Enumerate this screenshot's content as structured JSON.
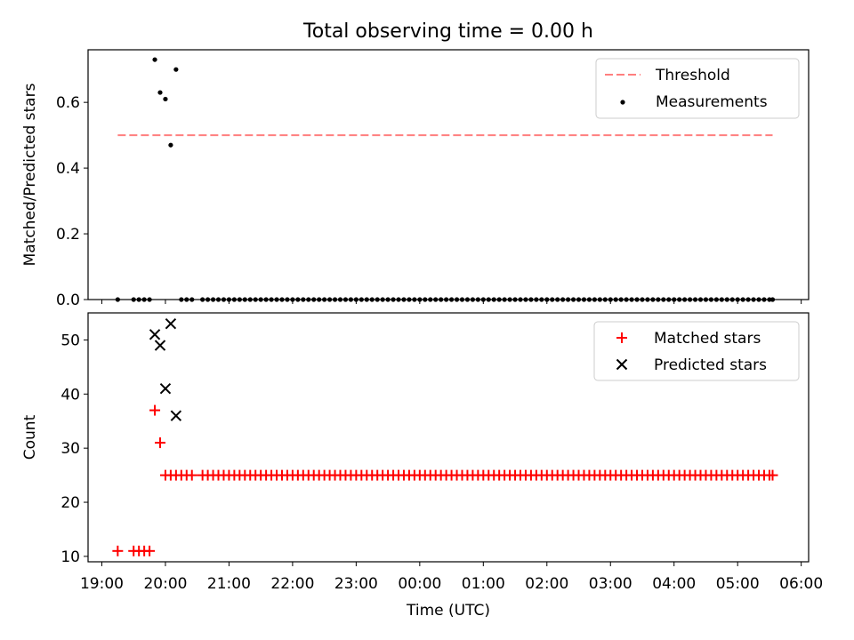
{
  "title": "Total observing time = 0.00 h",
  "chart_data": [
    {
      "type": "scatter",
      "ylabel": "Matched/Predicted stars",
      "ylim": [
        0,
        0.76
      ],
      "yticks": [
        0.0,
        0.2,
        0.4,
        0.6
      ],
      "ytick_labels": [
        "0.0",
        "0.2",
        "0.4",
        "0.6"
      ],
      "legend_placement": "top-right",
      "threshold": {
        "name": "Threshold",
        "value": 0.5,
        "color": "#ff7f7f"
      },
      "series": [
        {
          "name": "Measurements",
          "color": "#000000",
          "x": [
            "19:15",
            "19:30",
            "19:35",
            "19:40",
            "19:45",
            "19:50",
            "19:55",
            "20:00",
            "20:05",
            "20:10",
            "20:15",
            "20:20",
            "20:25",
            "20:35",
            "20:40",
            "20:45",
            "20:50",
            "20:55",
            "21:00",
            "21:05",
            "21:10",
            "21:15",
            "21:20",
            "21:25",
            "21:30",
            "21:35",
            "21:40",
            "21:45",
            "21:50",
            "21:55",
            "22:00",
            "22:05",
            "22:10",
            "22:15",
            "22:20",
            "22:25",
            "22:30",
            "22:35",
            "22:40",
            "22:45",
            "22:50",
            "22:55",
            "23:00",
            "23:05",
            "23:10",
            "23:15",
            "23:20",
            "23:25",
            "23:30",
            "23:35",
            "23:40",
            "23:45",
            "23:50",
            "23:55",
            "00:00",
            "00:05",
            "00:10",
            "00:15",
            "00:20",
            "00:25",
            "00:30",
            "00:35",
            "00:40",
            "00:45",
            "00:50",
            "00:55",
            "01:00",
            "01:05",
            "01:10",
            "01:15",
            "01:20",
            "01:25",
            "01:30",
            "01:35",
            "01:40",
            "01:45",
            "01:50",
            "01:55",
            "02:00",
            "02:05",
            "02:10",
            "02:15",
            "02:20",
            "02:25",
            "02:30",
            "02:35",
            "02:40",
            "02:45",
            "02:50",
            "02:55",
            "03:00",
            "03:05",
            "03:10",
            "03:15",
            "03:20",
            "03:25",
            "03:30",
            "03:35",
            "03:40",
            "03:45",
            "03:50",
            "03:55",
            "04:00",
            "04:05",
            "04:10",
            "04:15",
            "04:20",
            "04:25",
            "04:30",
            "04:35",
            "04:40",
            "04:45",
            "04:50",
            "04:55",
            "05:00",
            "05:05",
            "05:10",
            "05:15",
            "05:20",
            "05:25",
            "05:30",
            "05:33"
          ],
          "y": [
            0,
            0,
            0,
            0,
            0,
            0.73,
            0.63,
            0.61,
            0.47,
            0.7,
            0,
            0,
            0,
            0,
            0,
            0,
            0,
            0,
            0,
            0,
            0,
            0,
            0,
            0,
            0,
            0,
            0,
            0,
            0,
            0,
            0,
            0,
            0,
            0,
            0,
            0,
            0,
            0,
            0,
            0,
            0,
            0,
            0,
            0,
            0,
            0,
            0,
            0,
            0,
            0,
            0,
            0,
            0,
            0,
            0,
            0,
            0,
            0,
            0,
            0,
            0,
            0,
            0,
            0,
            0,
            0,
            0,
            0,
            0,
            0,
            0,
            0,
            0,
            0,
            0,
            0,
            0,
            0,
            0,
            0,
            0,
            0,
            0,
            0,
            0,
            0,
            0,
            0,
            0,
            0,
            0,
            0,
            0,
            0,
            0,
            0,
            0,
            0,
            0,
            0,
            0,
            0,
            0,
            0,
            0,
            0,
            0,
            0,
            0,
            0,
            0,
            0,
            0,
            0,
            0,
            0,
            0,
            0,
            0,
            0,
            0,
            0
          ]
        }
      ]
    },
    {
      "type": "scatter",
      "xlabel": "Time (UTC)",
      "ylabel": "Count",
      "ylim": [
        9,
        55
      ],
      "yticks": [
        10,
        20,
        30,
        40,
        50
      ],
      "ytick_labels": [
        "10",
        "20",
        "30",
        "40",
        "50"
      ],
      "xtick_labels": [
        "19:00",
        "20:00",
        "21:00",
        "22:00",
        "23:00",
        "00:00",
        "01:00",
        "02:00",
        "03:00",
        "04:00",
        "05:00",
        "06:00"
      ],
      "legend_placement": "top-right",
      "series": [
        {
          "name": "Matched stars",
          "marker": "plus",
          "color": "#ff0000",
          "x": [
            "19:15",
            "19:30",
            "19:35",
            "19:40",
            "19:45",
            "19:50",
            "19:55",
            "20:00",
            "20:05",
            "20:10",
            "20:15",
            "20:20",
            "20:25",
            "20:35",
            "20:40",
            "20:45",
            "20:50",
            "20:55",
            "21:00",
            "21:05",
            "21:10",
            "21:15",
            "21:20",
            "21:25",
            "21:30",
            "21:35",
            "21:40",
            "21:45",
            "21:50",
            "21:55",
            "22:00",
            "22:05",
            "22:10",
            "22:15",
            "22:20",
            "22:25",
            "22:30",
            "22:35",
            "22:40",
            "22:45",
            "22:50",
            "22:55",
            "23:00",
            "23:05",
            "23:10",
            "23:15",
            "23:20",
            "23:25",
            "23:30",
            "23:35",
            "23:40",
            "23:45",
            "23:50",
            "23:55",
            "00:00",
            "00:05",
            "00:10",
            "00:15",
            "00:20",
            "00:25",
            "00:30",
            "00:35",
            "00:40",
            "00:45",
            "00:50",
            "00:55",
            "01:00",
            "01:05",
            "01:10",
            "01:15",
            "01:20",
            "01:25",
            "01:30",
            "01:35",
            "01:40",
            "01:45",
            "01:50",
            "01:55",
            "02:00",
            "02:05",
            "02:10",
            "02:15",
            "02:20",
            "02:25",
            "02:30",
            "02:35",
            "02:40",
            "02:45",
            "02:50",
            "02:55",
            "03:00",
            "03:05",
            "03:10",
            "03:15",
            "03:20",
            "03:25",
            "03:30",
            "03:35",
            "03:40",
            "03:45",
            "03:50",
            "03:55",
            "04:00",
            "04:05",
            "04:10",
            "04:15",
            "04:20",
            "04:25",
            "04:30",
            "04:35",
            "04:40",
            "04:45",
            "04:50",
            "04:55",
            "05:00",
            "05:05",
            "05:10",
            "05:15",
            "05:20",
            "05:25",
            "05:30",
            "05:33"
          ],
          "y": [
            11,
            11,
            11,
            11,
            11,
            37,
            31,
            25,
            25,
            25,
            25,
            25,
            25,
            25,
            25,
            25,
            25,
            25,
            25,
            25,
            25,
            25,
            25,
            25,
            25,
            25,
            25,
            25,
            25,
            25,
            25,
            25,
            25,
            25,
            25,
            25,
            25,
            25,
            25,
            25,
            25,
            25,
            25,
            25,
            25,
            25,
            25,
            25,
            25,
            25,
            25,
            25,
            25,
            25,
            25,
            25,
            25,
            25,
            25,
            25,
            25,
            25,
            25,
            25,
            25,
            25,
            25,
            25,
            25,
            25,
            25,
            25,
            25,
            25,
            25,
            25,
            25,
            25,
            25,
            25,
            25,
            25,
            25,
            25,
            25,
            25,
            25,
            25,
            25,
            25,
            25,
            25,
            25,
            25,
            25,
            25,
            25,
            25,
            25,
            25,
            25,
            25,
            25,
            25,
            25,
            25,
            25,
            25,
            25,
            25,
            25,
            25,
            25,
            25,
            25,
            25,
            25,
            25,
            25,
            25,
            25,
            25
          ]
        },
        {
          "name": "Predicted stars",
          "marker": "x",
          "color": "#000000",
          "x": [
            "19:50",
            "19:55",
            "20:00",
            "20:05",
            "20:10"
          ],
          "y": [
            51,
            49,
            41,
            53,
            36
          ]
        }
      ]
    }
  ]
}
